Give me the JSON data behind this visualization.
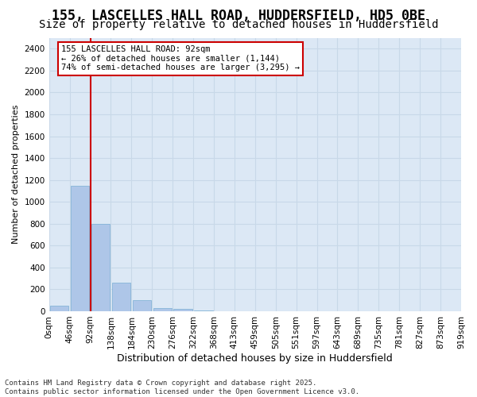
{
  "title": "155, LASCELLES HALL ROAD, HUDDERSFIELD, HD5 0BE",
  "subtitle": "Size of property relative to detached houses in Huddersfield",
  "xlabel": "Distribution of detached houses by size in Huddersfield",
  "ylabel": "Number of detached properties",
  "bin_labels": [
    "0sqm",
    "46sqm",
    "92sqm",
    "138sqm",
    "184sqm",
    "230sqm",
    "276sqm",
    "322sqm",
    "368sqm",
    "413sqm",
    "459sqm",
    "505sqm",
    "551sqm",
    "597sqm",
    "643sqm",
    "689sqm",
    "735sqm",
    "781sqm",
    "827sqm",
    "873sqm",
    "919sqm"
  ],
  "bar_heights": [
    50,
    1150,
    800,
    260,
    100,
    30,
    20,
    10,
    0,
    0,
    0,
    0,
    0,
    0,
    0,
    0,
    0,
    0,
    0,
    0
  ],
  "bar_color": "#aec6e8",
  "bar_edge_color": "#7aafd4",
  "vline_color": "#cc0000",
  "vline_bin_index": 2,
  "annotation_text": "155 LASCELLES HALL ROAD: 92sqm\n← 26% of detached houses are smaller (1,144)\n74% of semi-detached houses are larger (3,295) →",
  "annotation_box_edgecolor": "#cc0000",
  "ylim": [
    0,
    2500
  ],
  "yticks": [
    0,
    200,
    400,
    600,
    800,
    1000,
    1200,
    1400,
    1600,
    1800,
    2000,
    2200,
    2400
  ],
  "grid_color": "#c8d8e8",
  "bg_color": "#dce8f5",
  "footer_line1": "Contains HM Land Registry data © Crown copyright and database right 2025.",
  "footer_line2": "Contains public sector information licensed under the Open Government Licence v3.0.",
  "title_fontsize": 12,
  "subtitle_fontsize": 10,
  "xlabel_fontsize": 9,
  "ylabel_fontsize": 8,
  "tick_fontsize": 7.5,
  "footer_fontsize": 6.5
}
